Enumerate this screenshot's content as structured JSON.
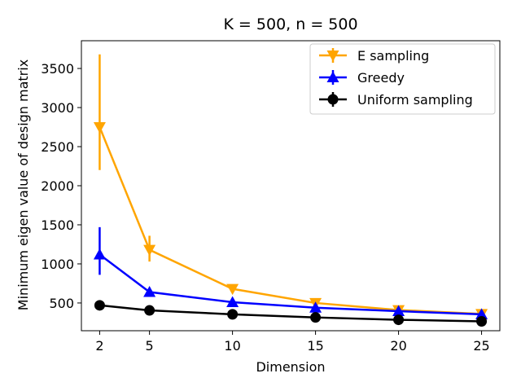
{
  "chart_data": {
    "type": "line",
    "title": "K = 500, n = 500",
    "xlabel": "Dimension",
    "ylabel": "Minimum eigen value of design matrix",
    "x": [
      2,
      5,
      10,
      15,
      20,
      25
    ],
    "xticks": [
      2,
      5,
      10,
      15,
      20,
      25
    ],
    "yticks": [
      500,
      1000,
      1500,
      2000,
      2500,
      3000,
      3500
    ],
    "xlim": [
      0.9,
      26.1
    ],
    "ylim": [
      145,
      3855
    ],
    "legend_position": "top-right",
    "series": [
      {
        "name": "E sampling",
        "color": "#ffa500",
        "marker": "triangle-down",
        "values": [
          2750,
          1180,
          680,
          500,
          410,
          360
        ],
        "err_low": [
          2200,
          1030,
          640,
          480,
          390,
          340
        ],
        "err_high": [
          3680,
          1360,
          720,
          520,
          430,
          380
        ]
      },
      {
        "name": "Greedy",
        "color": "#0000ff",
        "marker": "triangle-up",
        "values": [
          1120,
          640,
          510,
          440,
          395,
          355
        ],
        "err_low": [
          860,
          610,
          490,
          425,
          380,
          340
        ],
        "err_high": [
          1470,
          670,
          530,
          455,
          410,
          370
        ]
      },
      {
        "name": "Uniform sampling",
        "color": "#000000",
        "marker": "circle",
        "values": [
          470,
          405,
          355,
          315,
          285,
          265
        ],
        "err_low": [
          450,
          390,
          340,
          300,
          270,
          250
        ],
        "err_high": [
          490,
          420,
          370,
          330,
          300,
          280
        ]
      }
    ]
  }
}
